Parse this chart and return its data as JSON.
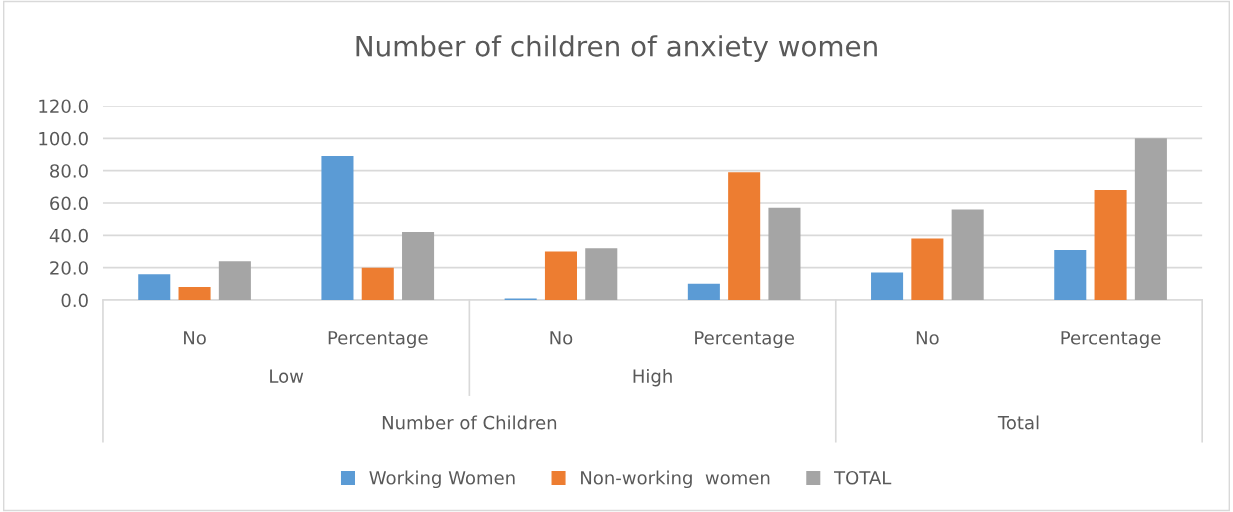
{
  "chart_data": {
    "type": "bar",
    "title": "Number of children of anxiety women",
    "categories": [
      "No",
      "Percentage",
      "No",
      "Percentage",
      "No",
      "Percentage"
    ],
    "series": [
      {
        "name": "Working Women",
        "color": "#5b9bd5",
        "values": [
          16,
          89,
          1,
          10,
          17,
          31
        ]
      },
      {
        "name": "Non-working  women",
        "color": "#ed7d31",
        "values": [
          8,
          20,
          30,
          79,
          38,
          68
        ]
      },
      {
        "name": "TOTAL",
        "color": "#a5a5a5",
        "values": [
          24,
          42,
          32,
          57,
          56,
          100
        ]
      }
    ],
    "annotations": [
      "Low",
      "High",
      "Number of Children",
      "Total"
    ],
    "ylim": [
      0,
      120
    ],
    "yticks": [
      {
        "value": 0,
        "label": "0.0"
      },
      {
        "value": 20,
        "label": "20.0"
      },
      {
        "value": 40,
        "label": "40.0"
      },
      {
        "value": 60,
        "label": "60.0"
      },
      {
        "value": 80,
        "label": "80.0"
      },
      {
        "value": 100,
        "label": "100.0"
      },
      {
        "value": 120,
        "label": "120.0"
      }
    ],
    "grid": "y",
    "legend": "bottom"
  }
}
